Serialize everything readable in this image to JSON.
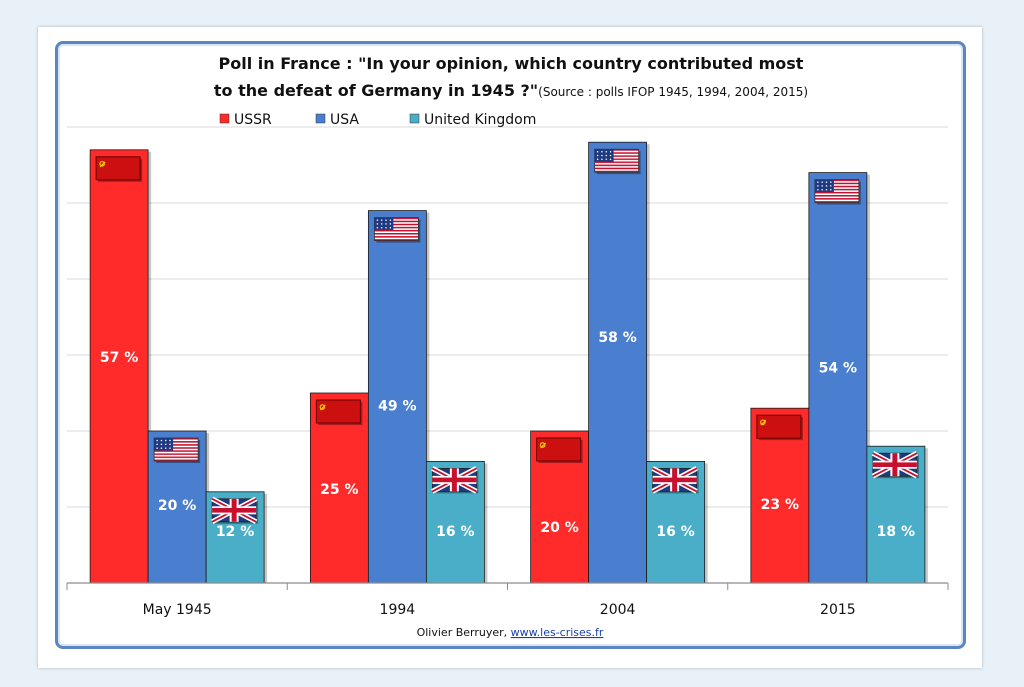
{
  "chart_data": {
    "type": "bar",
    "title_line1": "Poll in France : \"In your opinion, which country contributed most",
    "title_line2": "to the defeat of Germany in 1945 ?\"",
    "subtitle": "(Source : polls IFOP 1945, 1994, 2004, 2015)",
    "categories": [
      "May 1945",
      "1994",
      "2004",
      "2015"
    ],
    "series": [
      {
        "name": "USSR",
        "values": [
          57,
          25,
          20,
          23
        ],
        "labels": [
          "57 %",
          "25 %",
          "20 %",
          "23 %"
        ],
        "color": "#ff2a2a",
        "flag": "ussr-flag"
      },
      {
        "name": "USA",
        "values": [
          20,
          49,
          58,
          54
        ],
        "labels": [
          "20 %",
          "49 %",
          "58 %",
          "54 %"
        ],
        "color": "#4a7fd0",
        "flag": "usa-flag"
      },
      {
        "name": "United Kingdom",
        "values": [
          12,
          16,
          16,
          18
        ],
        "labels": [
          "12 %",
          "16 %",
          "16 %",
          "18 %"
        ],
        "color": "#4aaec8",
        "flag": "uk-flag"
      }
    ],
    "ylim": [
      0,
      60
    ],
    "grid": true,
    "legend_position": "top-center",
    "xlabel": "",
    "ylabel": ""
  },
  "footer": {
    "author": "Olivier Berruyer,",
    "link": "www.les-crises.fr"
  },
  "colors": {
    "background": "#e8f0f8",
    "frame": "#5b86c2"
  }
}
